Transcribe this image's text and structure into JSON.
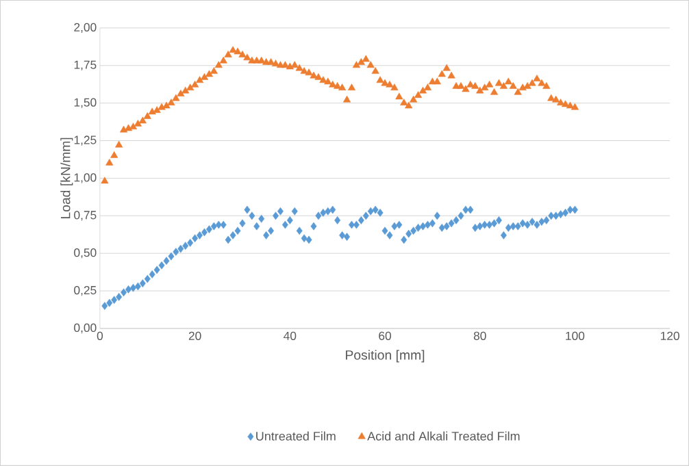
{
  "chart_data": {
    "type": "scatter",
    "xlabel": "Position [mm]",
    "ylabel": "Load [kN/mm]",
    "x": [
      1,
      2,
      3,
      4,
      5,
      6,
      7,
      8,
      9,
      10,
      11,
      12,
      13,
      14,
      15,
      16,
      17,
      18,
      19,
      20,
      21,
      22,
      23,
      24,
      25,
      26,
      27,
      28,
      29,
      30,
      31,
      32,
      33,
      34,
      35,
      36,
      37,
      38,
      39,
      40,
      41,
      42,
      43,
      44,
      45,
      46,
      47,
      48,
      49,
      50,
      51,
      52,
      53,
      54,
      55,
      56,
      57,
      58,
      59,
      60,
      61,
      62,
      63,
      64,
      65,
      66,
      67,
      68,
      69,
      70,
      71,
      72,
      73,
      74,
      75,
      76,
      77,
      78,
      79,
      80,
      81,
      82,
      83,
      84,
      85,
      86,
      87,
      88,
      89,
      90,
      91,
      92,
      93,
      94,
      95,
      96,
      97,
      98,
      99,
      100
    ],
    "series": [
      {
        "name": "Untreated Film",
        "color": "#5b9bd5",
        "marker": "diamond",
        "values": [
          0.15,
          0.17,
          0.19,
          0.21,
          0.24,
          0.26,
          0.27,
          0.28,
          0.3,
          0.33,
          0.36,
          0.39,
          0.42,
          0.45,
          0.48,
          0.51,
          0.53,
          0.55,
          0.57,
          0.6,
          0.62,
          0.64,
          0.66,
          0.68,
          0.69,
          0.69,
          0.59,
          0.62,
          0.65,
          0.7,
          0.79,
          0.75,
          0.68,
          0.73,
          0.62,
          0.65,
          0.75,
          0.78,
          0.69,
          0.72,
          0.78,
          0.65,
          0.6,
          0.59,
          0.68,
          0.75,
          0.77,
          0.78,
          0.79,
          0.72,
          0.62,
          0.61,
          0.69,
          0.69,
          0.72,
          0.75,
          0.78,
          0.79,
          0.77,
          0.65,
          0.62,
          0.68,
          0.69,
          0.59,
          0.63,
          0.65,
          0.67,
          0.68,
          0.69,
          0.7,
          0.75,
          0.67,
          0.68,
          0.7,
          0.72,
          0.75,
          0.79,
          0.79,
          0.67,
          0.68,
          0.69,
          0.69,
          0.7,
          0.72,
          0.62,
          0.67,
          0.68,
          0.68,
          0.7,
          0.69,
          0.71,
          0.69,
          0.71,
          0.72,
          0.75,
          0.75,
          0.76,
          0.77,
          0.79,
          0.79
        ]
      },
      {
        "name": "Acid and Alkali Treated Film",
        "color": "#ed7d31",
        "marker": "triangle",
        "values": [
          0.98,
          1.1,
          1.15,
          1.22,
          1.32,
          1.33,
          1.34,
          1.36,
          1.38,
          1.41,
          1.44,
          1.45,
          1.47,
          1.48,
          1.5,
          1.53,
          1.56,
          1.58,
          1.6,
          1.62,
          1.65,
          1.67,
          1.69,
          1.71,
          1.75,
          1.78,
          1.82,
          1.85,
          1.84,
          1.82,
          1.8,
          1.78,
          1.78,
          1.78,
          1.77,
          1.77,
          1.76,
          1.75,
          1.75,
          1.74,
          1.75,
          1.73,
          1.71,
          1.7,
          1.68,
          1.67,
          1.65,
          1.64,
          1.62,
          1.61,
          1.6,
          1.52,
          1.6,
          1.75,
          1.77,
          1.79,
          1.75,
          1.71,
          1.65,
          1.63,
          1.62,
          1.6,
          1.54,
          1.5,
          1.48,
          1.52,
          1.55,
          1.58,
          1.6,
          1.64,
          1.64,
          1.69,
          1.73,
          1.68,
          1.61,
          1.61,
          1.59,
          1.62,
          1.61,
          1.58,
          1.6,
          1.62,
          1.57,
          1.63,
          1.61,
          1.64,
          1.61,
          1.57,
          1.6,
          1.61,
          1.63,
          1.66,
          1.63,
          1.61,
          1.53,
          1.52,
          1.5,
          1.49,
          1.48,
          1.47
        ]
      }
    ],
    "xlim": [
      0,
      120
    ],
    "xticks": [
      0,
      20,
      40,
      60,
      80,
      100,
      120
    ],
    "ylim": [
      0,
      2
    ],
    "yticks": [
      {
        "value": 0,
        "label": "0,00"
      },
      {
        "value": 0.25,
        "label": "0,25"
      },
      {
        "value": 0.5,
        "label": "0,50"
      },
      {
        "value": 0.75,
        "label": "0,75"
      },
      {
        "value": 1,
        "label": "1,00"
      },
      {
        "value": 1.25,
        "label": "1,25"
      },
      {
        "value": 1.5,
        "label": "1,50"
      },
      {
        "value": 1.75,
        "label": "1,75"
      },
      {
        "value": 2,
        "label": "2,00"
      }
    ],
    "grid": "y",
    "legend": "bottom"
  }
}
